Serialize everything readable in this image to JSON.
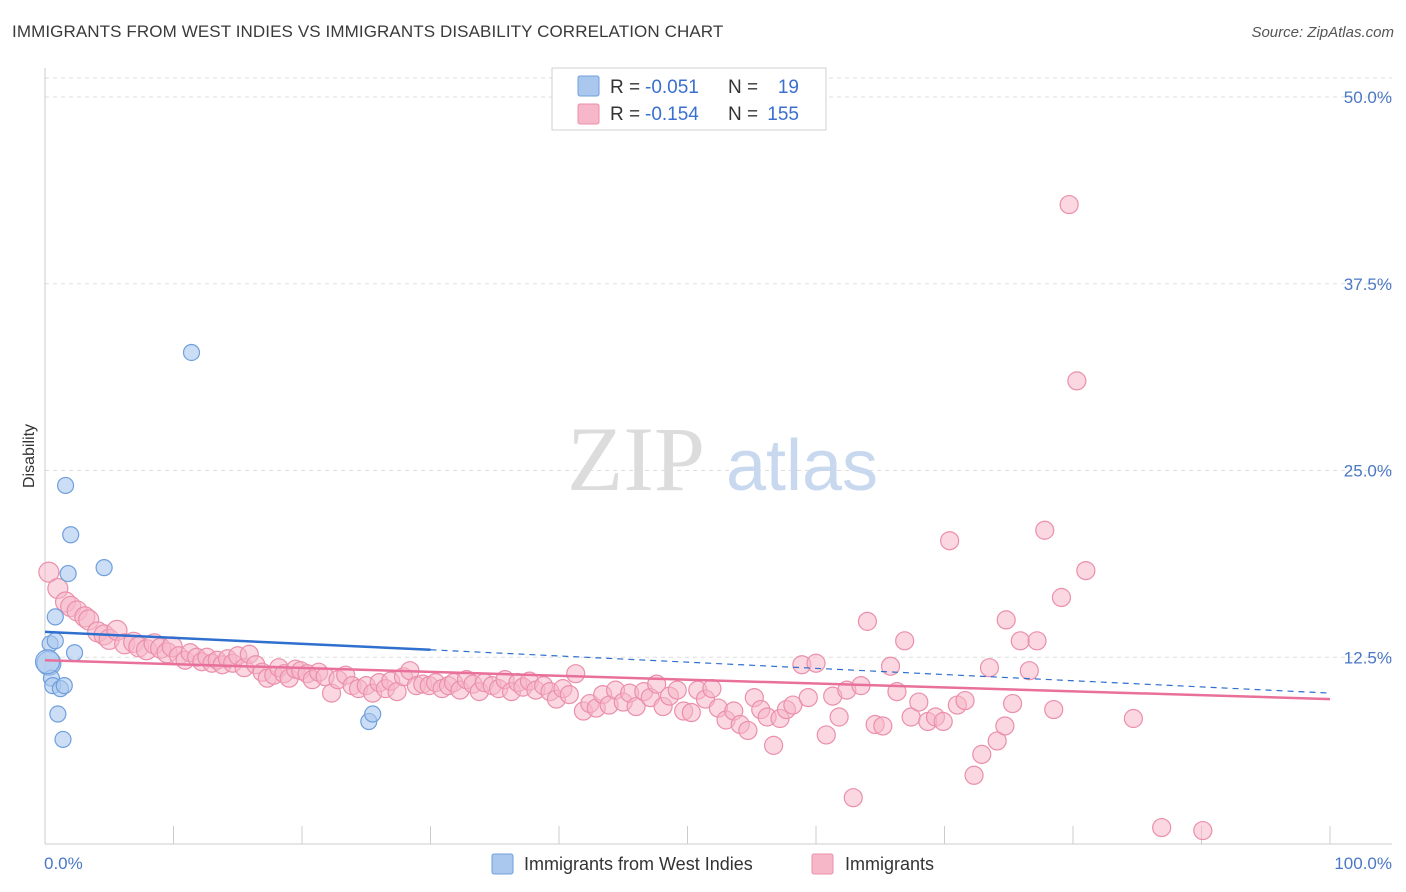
{
  "title": "IMMIGRANTS FROM WEST INDIES VS IMMIGRANTS DISABILITY CORRELATION CHART",
  "source": "Source: ZipAtlas.com",
  "watermark": {
    "zip": "ZIP",
    "atlas": "atlas"
  },
  "colors": {
    "blue_fill": "#aac8ee",
    "blue_stroke": "#6f9fdc",
    "blue_line": "#2f6fce",
    "pink_fill": "#f6b7c9",
    "pink_stroke": "#eb8fab",
    "pink_line": "#e8709a",
    "tick_text": "#4a78c4",
    "grid": "#dddddd"
  },
  "legend": {
    "rows": [
      {
        "r_label": "R =",
        "r_value": "-0.051",
        "n_label": "N =",
        "n_value": "19"
      },
      {
        "r_label": "R =",
        "r_value": "-0.154",
        "n_label": "N =",
        "n_value": "155"
      }
    ]
  },
  "chart_data": {
    "type": "scatter",
    "ylabel": "Disability",
    "xlim": [
      0,
      100
    ],
    "ylim": [
      0,
      50
    ],
    "x_tick_labels": [
      "0.0%",
      "100.0%"
    ],
    "y_ticks": [
      12.5,
      25.0,
      37.5,
      50.0
    ],
    "y_tick_labels": [
      "12.5%",
      "25.0%",
      "37.5%",
      "50.0%"
    ],
    "grid": true,
    "legend_position": "top-center",
    "series": [
      {
        "name": "Immigrants from West Indies",
        "color": "#aac8ee",
        "trend": {
          "x0": 0,
          "y0": 14.2,
          "x1": 30,
          "y1": 13.0,
          "dashed_to_x": 100,
          "dashed_to_y": 10.1
        },
        "points": [
          [
            0.3,
            12.1
          ],
          [
            0.4,
            13.4
          ],
          [
            0.5,
            11.1
          ],
          [
            0.6,
            10.6
          ],
          [
            0.8,
            15.2
          ],
          [
            0.8,
            13.6
          ],
          [
            1.0,
            8.7
          ],
          [
            1.2,
            10.4
          ],
          [
            1.4,
            7.0
          ],
          [
            1.5,
            10.6
          ],
          [
            1.6,
            24.0
          ],
          [
            1.8,
            18.1
          ],
          [
            2.0,
            20.7
          ],
          [
            2.3,
            12.8
          ],
          [
            4.6,
            18.5
          ],
          [
            11.4,
            32.9
          ],
          [
            25.2,
            8.2
          ],
          [
            25.5,
            8.7
          ],
          [
            0.2,
            12.2
          ]
        ]
      },
      {
        "name": "Immigrants",
        "color": "#f6b7c9",
        "trend": {
          "x0": 0,
          "y0": 12.3,
          "x1": 100,
          "y1": 9.7
        },
        "points": [
          [
            0.3,
            18.2
          ],
          [
            1.0,
            17.1
          ],
          [
            1.6,
            16.2
          ],
          [
            2.0,
            15.9
          ],
          [
            2.5,
            15.6
          ],
          [
            3.1,
            15.2
          ],
          [
            3.4,
            15.0
          ],
          [
            4.1,
            14.2
          ],
          [
            4.6,
            14.0
          ],
          [
            5.0,
            13.7
          ],
          [
            5.6,
            14.3
          ],
          [
            6.2,
            13.4
          ],
          [
            6.9,
            13.5
          ],
          [
            7.3,
            13.2
          ],
          [
            7.9,
            13.0
          ],
          [
            8.5,
            13.4
          ],
          [
            9.0,
            13.1
          ],
          [
            9.5,
            12.8
          ],
          [
            9.9,
            13.2
          ],
          [
            10.4,
            12.6
          ],
          [
            10.9,
            12.3
          ],
          [
            11.3,
            12.8
          ],
          [
            11.8,
            12.5
          ],
          [
            12.2,
            12.2
          ],
          [
            12.6,
            12.5
          ],
          [
            13.0,
            12.1
          ],
          [
            13.4,
            12.3
          ],
          [
            13.8,
            12.0
          ],
          [
            14.2,
            12.4
          ],
          [
            14.6,
            12.1
          ],
          [
            15.0,
            12.6
          ],
          [
            15.5,
            11.8
          ],
          [
            15.9,
            12.7
          ],
          [
            16.4,
            12.0
          ],
          [
            16.9,
            11.5
          ],
          [
            17.3,
            11.1
          ],
          [
            17.8,
            11.3
          ],
          [
            18.2,
            11.8
          ],
          [
            18.6,
            11.4
          ],
          [
            19.0,
            11.1
          ],
          [
            19.5,
            11.7
          ],
          [
            19.9,
            11.6
          ],
          [
            20.4,
            11.4
          ],
          [
            20.8,
            11.0
          ],
          [
            21.3,
            11.5
          ],
          [
            21.8,
            11.2
          ],
          [
            22.3,
            10.1
          ],
          [
            22.8,
            11.0
          ],
          [
            23.4,
            11.3
          ],
          [
            23.9,
            10.6
          ],
          [
            24.4,
            10.4
          ],
          [
            25.0,
            10.6
          ],
          [
            25.5,
            10.1
          ],
          [
            26.0,
            10.8
          ],
          [
            26.5,
            10.4
          ],
          [
            26.9,
            10.9
          ],
          [
            27.4,
            10.2
          ],
          [
            27.9,
            11.2
          ],
          [
            28.4,
            11.6
          ],
          [
            28.9,
            10.6
          ],
          [
            29.4,
            10.7
          ],
          [
            29.9,
            10.6
          ],
          [
            30.4,
            10.8
          ],
          [
            30.9,
            10.4
          ],
          [
            31.4,
            10.6
          ],
          [
            31.8,
            10.8
          ],
          [
            32.3,
            10.3
          ],
          [
            32.8,
            11.0
          ],
          [
            33.3,
            10.7
          ],
          [
            33.8,
            10.2
          ],
          [
            34.2,
            10.8
          ],
          [
            34.8,
            10.6
          ],
          [
            35.3,
            10.4
          ],
          [
            35.8,
            11.0
          ],
          [
            36.3,
            10.2
          ],
          [
            36.8,
            10.8
          ],
          [
            37.2,
            10.5
          ],
          [
            37.7,
            10.9
          ],
          [
            38.2,
            10.3
          ],
          [
            38.8,
            10.6
          ],
          [
            39.3,
            10.2
          ],
          [
            39.8,
            9.7
          ],
          [
            40.3,
            10.4
          ],
          [
            40.8,
            10.0
          ],
          [
            41.3,
            11.4
          ],
          [
            41.9,
            8.9
          ],
          [
            42.4,
            9.4
          ],
          [
            42.9,
            9.1
          ],
          [
            43.4,
            10.0
          ],
          [
            43.9,
            9.3
          ],
          [
            44.4,
            10.3
          ],
          [
            45.0,
            9.5
          ],
          [
            45.5,
            10.1
          ],
          [
            46.0,
            9.2
          ],
          [
            46.6,
            10.2
          ],
          [
            47.1,
            9.8
          ],
          [
            47.6,
            10.7
          ],
          [
            48.1,
            9.2
          ],
          [
            48.6,
            9.9
          ],
          [
            49.2,
            10.3
          ],
          [
            49.7,
            8.9
          ],
          [
            50.3,
            8.8
          ],
          [
            50.8,
            10.3
          ],
          [
            51.4,
            9.7
          ],
          [
            51.9,
            10.4
          ],
          [
            52.4,
            9.1
          ],
          [
            53.0,
            8.3
          ],
          [
            53.6,
            8.9
          ],
          [
            54.1,
            8.0
          ],
          [
            54.7,
            7.6
          ],
          [
            55.2,
            9.8
          ],
          [
            55.7,
            9.0
          ],
          [
            56.2,
            8.5
          ],
          [
            56.7,
            6.6
          ],
          [
            57.2,
            8.4
          ],
          [
            57.7,
            9.0
          ],
          [
            58.2,
            9.3
          ],
          [
            58.9,
            12.0
          ],
          [
            59.4,
            9.8
          ],
          [
            60.0,
            12.1
          ],
          [
            60.8,
            7.3
          ],
          [
            61.3,
            9.9
          ],
          [
            61.8,
            8.5
          ],
          [
            62.4,
            10.3
          ],
          [
            62.9,
            3.1
          ],
          [
            63.5,
            10.6
          ],
          [
            64.0,
            14.9
          ],
          [
            64.6,
            8.0
          ],
          [
            65.2,
            7.9
          ],
          [
            65.8,
            11.9
          ],
          [
            66.3,
            10.2
          ],
          [
            66.9,
            13.6
          ],
          [
            67.4,
            8.5
          ],
          [
            68.0,
            9.5
          ],
          [
            68.7,
            8.2
          ],
          [
            69.3,
            8.5
          ],
          [
            69.9,
            8.2
          ],
          [
            70.4,
            20.3
          ],
          [
            71.0,
            9.3
          ],
          [
            71.6,
            9.6
          ],
          [
            72.3,
            4.6
          ],
          [
            72.9,
            6.0
          ],
          [
            73.5,
            11.8
          ],
          [
            74.1,
            6.9
          ],
          [
            74.7,
            7.9
          ],
          [
            75.3,
            9.4
          ],
          [
            75.9,
            13.6
          ],
          [
            76.6,
            11.6
          ],
          [
            77.2,
            13.6
          ],
          [
            77.8,
            21.0
          ],
          [
            78.5,
            9.0
          ],
          [
            79.1,
            16.5
          ],
          [
            79.7,
            42.8
          ],
          [
            80.3,
            31.0
          ],
          [
            81.0,
            18.3
          ],
          [
            84.7,
            8.4
          ],
          [
            86.9,
            1.1
          ],
          [
            90.1,
            0.9
          ],
          [
            74.8,
            15.0
          ]
        ]
      }
    ]
  }
}
